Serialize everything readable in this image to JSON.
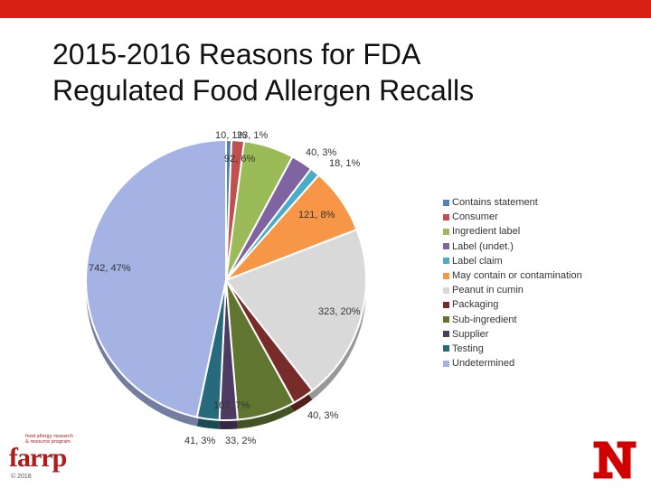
{
  "header_bar_color": "#d71f16",
  "title": {
    "line1": "2015-2016 Reasons for FDA",
    "line2": "Regulated Food Allergen Recalls"
  },
  "chart_data": {
    "type": "pie",
    "title": "2015-2016 Reasons for FDA Regulated Food Allergen Recalls",
    "legend_position": "right",
    "slices": [
      {
        "name": "Contains statement",
        "value": 10,
        "label": "10, 1%",
        "color": "#4f81bd"
      },
      {
        "name": "Consumer",
        "value": 23,
        "label": "23, 1%",
        "color": "#c0504d"
      },
      {
        "name": "Ingredient label",
        "value": 92,
        "label": "92, 6%",
        "color": "#9bbb59"
      },
      {
        "name": "Label (undet.)",
        "value": 40,
        "label": "40, 3%",
        "color": "#8064a2"
      },
      {
        "name": "Label claim",
        "value": 18,
        "label": "18, 1%",
        "color": "#4bacc6"
      },
      {
        "name": "May contain or contamination",
        "value": 121,
        "label": "121, 8%",
        "color": "#f79646"
      },
      {
        "name": "Peanut in cumin",
        "value": 323,
        "label": "323, 20%",
        "color": "#d9d9d9"
      },
      {
        "name": "Packaging",
        "value": 40,
        "label": "40, 3%",
        "color": "#772c2a"
      },
      {
        "name": "Sub-ingredient",
        "value": 107,
        "label": "107, 7%",
        "color": "#5f7530"
      },
      {
        "name": "Supplier",
        "value": 33,
        "label": "33, 2%",
        "color": "#4d3b62"
      },
      {
        "name": "Testing",
        "value": 41,
        "label": "41, 3%",
        "color": "#276a7c"
      },
      {
        "name": "Undetermined",
        "value": 742,
        "label": "742, 47%",
        "color": "#a5b3e4"
      }
    ]
  },
  "footer": {
    "farrp_tagline_1": "food allergy research",
    "farrp_tagline_2": "& resource program",
    "farrp_logo_text": "farrp",
    "copyright": "© 2018"
  }
}
